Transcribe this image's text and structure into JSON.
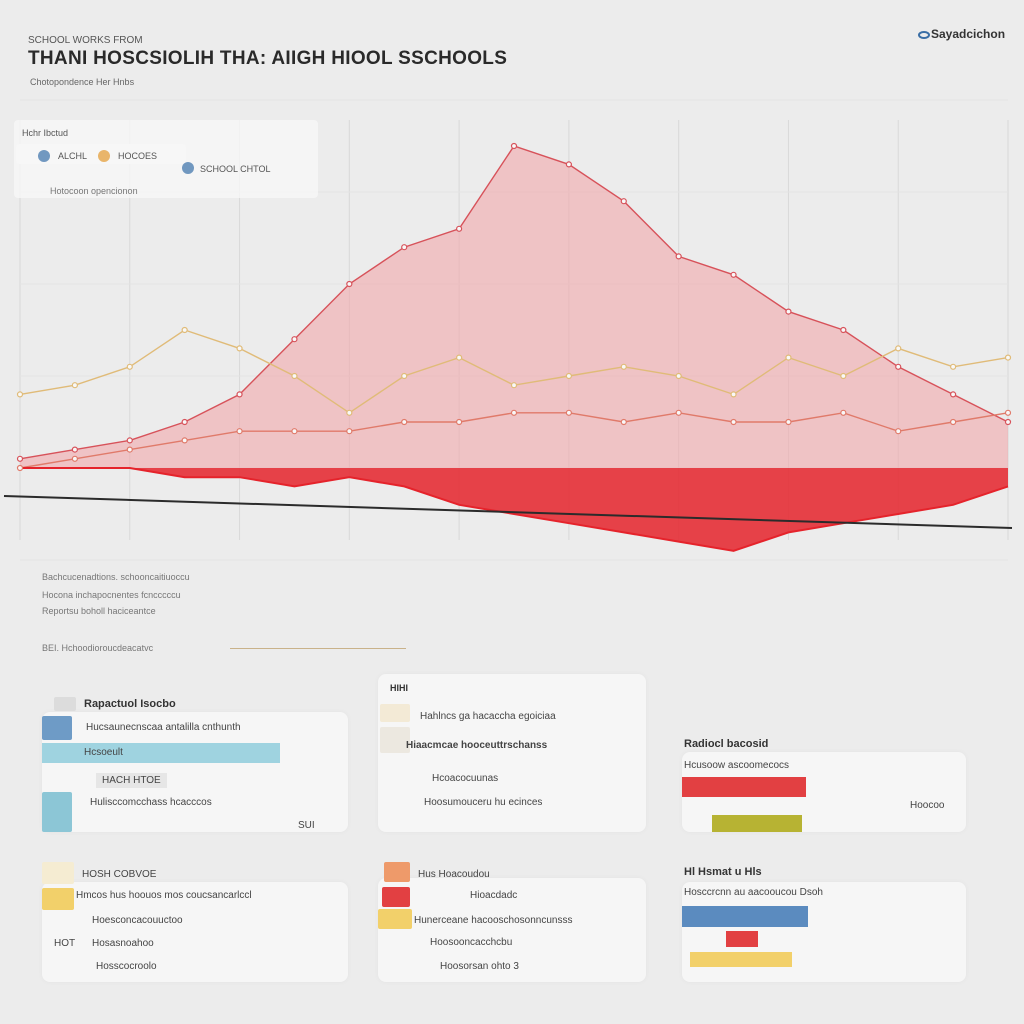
{
  "header": {
    "kicker": "SCHOOL WORKS FROM",
    "title": "THANI HOSCSIOLIH THA: AIIGH HIOOL SSCHOOLS",
    "subtitle": "Chotopondence Her Hnbs",
    "brand": "Sayadcichon"
  },
  "legend": {
    "title": "Hchr Ibctud",
    "items": [
      {
        "name": "ALCHL",
        "color": "#4f7fb2"
      },
      {
        "name": "HOCOES",
        "color": "#e9b56a"
      },
      {
        "name": "SCHOOL CHTOL",
        "color": "#4f7fb2"
      }
    ],
    "note": "Hotocoon opencionon"
  },
  "chart_data": {
    "type": "area",
    "title": "THANI HOSCSIOLIH THA: AIIGH HIOOL SSCHOOLS",
    "x": [
      0,
      1,
      2,
      3,
      4,
      5,
      6,
      7,
      8,
      9,
      10,
      11,
      12,
      13,
      14,
      15,
      16,
      17,
      18
    ],
    "series": [
      {
        "values": [
          1,
          2,
          3,
          5,
          8,
          14,
          20,
          24,
          26,
          35,
          33,
          29,
          23,
          21,
          17,
          15,
          11,
          8,
          5
        ],
        "color": "#f2a2a6"
      },
      {
        "values": [
          8,
          9,
          11,
          15,
          13,
          10,
          6,
          10,
          12,
          9,
          10,
          11,
          10,
          8,
          12,
          10,
          13,
          11,
          12
        ],
        "color": "#e0bb78"
      },
      {
        "values": [
          0,
          1,
          2,
          3,
          4,
          4,
          4,
          5,
          5,
          6,
          6,
          5,
          6,
          5,
          5,
          6,
          4,
          5,
          6
        ],
        "color": "#e07a6a"
      },
      {
        "values": [
          0,
          0,
          0,
          -1,
          -1,
          -2,
          -1,
          -2,
          -4,
          -5,
          -6,
          -7,
          -8,
          -9,
          -7,
          -6,
          -5,
          -4,
          -2
        ],
        "color": "#e5232b"
      }
    ],
    "ylim": [
      -10,
      40
    ],
    "grid": true,
    "legend": "top-left"
  },
  "notes": [
    "Bachcucenadtions. schooncaitiuoccu",
    "Hocona inchapocnentes fcncccccu",
    "Reportsu boholl haciceantce",
    "BEI. Hchoodioroucdeacatvc"
  ],
  "panels": {
    "p1": {
      "title": "Rapactuol Isocbo",
      "line1": "Hucsaunecnscaa antalilla cnthunth",
      "line2": "Hcsoeult",
      "line3": "HACH HTOE",
      "line4": "Hulisccomcchass hcacccos",
      "value": "SUI"
    },
    "p2": {
      "title": "HIHI",
      "line1": "Hahlncs ga hacaccha egoiciaa",
      "line2": "Hiaacmcae hooceuttrschanss",
      "line3": "Hcoacocuunas",
      "line4": "Hoosumouceru hu ecinces"
    },
    "p3": {
      "title": "Radiocl bacosid",
      "line1": "Hcusoow ascoomecocs",
      "value": "Hoocoo"
    },
    "p4": {
      "title": "HOSH COBVOE",
      "line1": "Hmcos hus hoouos mos coucsancarlccl",
      "line2": "Hoesconcacouuctoo",
      "line3": "Hosasnoahoo",
      "line4": "Hosscocroolo",
      "value": "HOT"
    },
    "p5": {
      "title": "Hus Hoacoudou",
      "line1": "Hioacdadc",
      "line2": "Hunerceane hacooschosonncunsss",
      "line3": "Hoosooncacchcbu",
      "line4": "Hoosorsan ohto 3"
    },
    "p6": {
      "title": "Hl Hsmat u Hls",
      "line1": "Hosccrcnn au aacooucou Dsoh"
    }
  },
  "colors": {
    "area": "#f2a2a6",
    "peak": "#e5232b",
    "accent_blue": "#5b8bbf",
    "accent_teal": "#8fcfdc",
    "accent_yellow": "#f2d06a",
    "accent_red": "#e24042",
    "accent_olive": "#b7b333"
  }
}
